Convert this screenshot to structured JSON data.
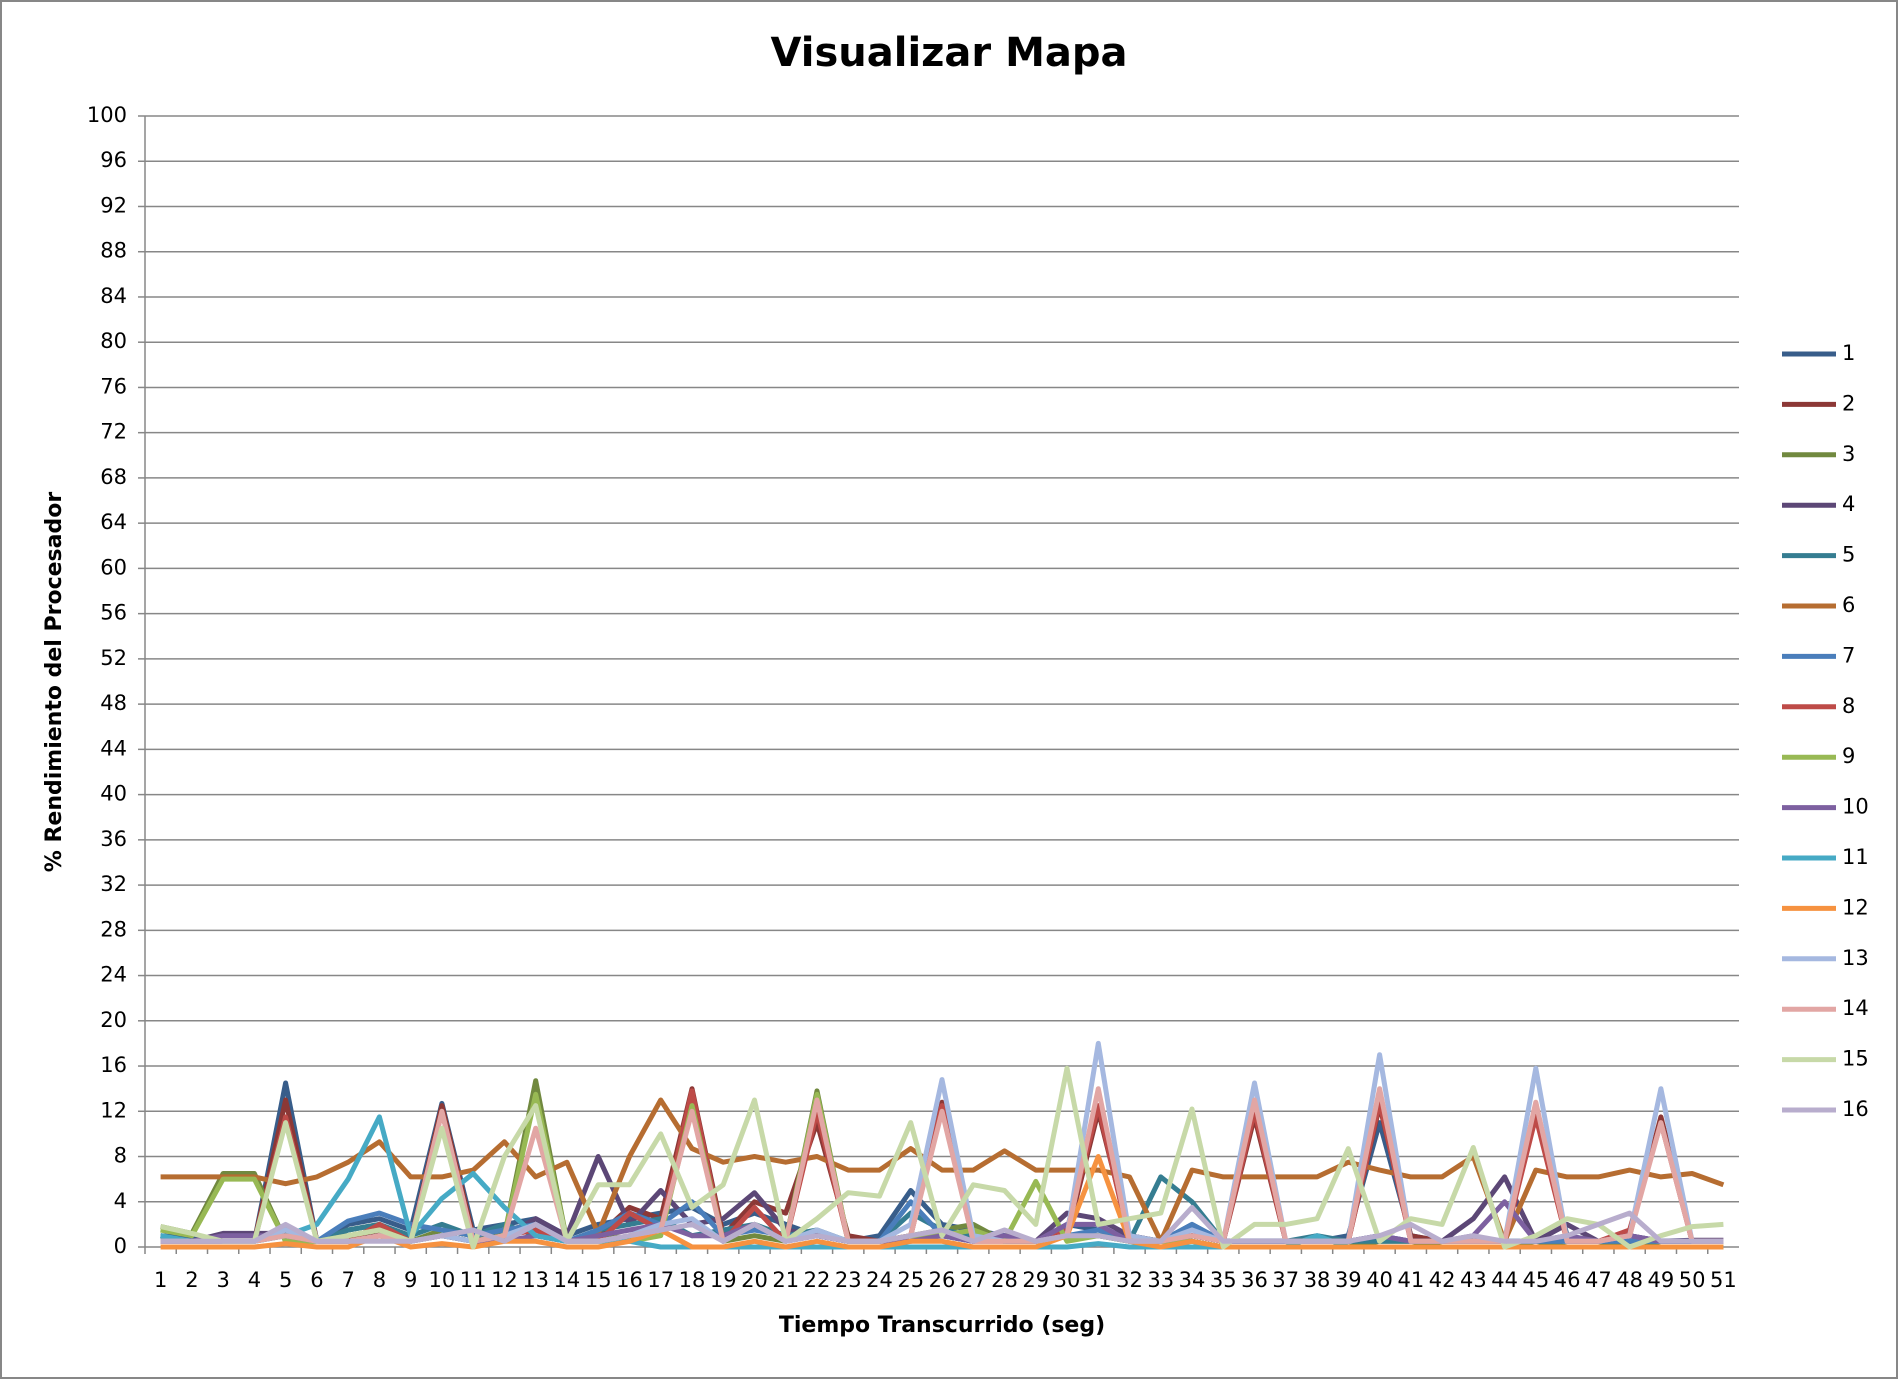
{
  "chart_data": {
    "type": "line",
    "title": "Visualizar Mapa",
    "x_label": "Tiempo Transcurrido (seg)",
    "y_label": "% Rendimiento del Procesador",
    "categories": [
      "1",
      "2",
      "3",
      "4",
      "5",
      "6",
      "7",
      "8",
      "9",
      "10",
      "11",
      "12",
      "13",
      "14",
      "15",
      "16",
      "17",
      "18",
      "19",
      "20",
      "21",
      "22",
      "23",
      "24",
      "25",
      "26",
      "27",
      "28",
      "29",
      "30",
      "31",
      "32",
      "33",
      "34",
      "35",
      "36",
      "37",
      "38",
      "39",
      "40",
      "41",
      "42",
      "43",
      "44",
      "45",
      "46",
      "47",
      "48",
      "49",
      "50",
      "51"
    ],
    "ylim": [
      0,
      100
    ],
    "yticks": [
      0,
      4,
      8,
      12,
      16,
      20,
      24,
      28,
      32,
      36,
      40,
      44,
      48,
      52,
      56,
      60,
      64,
      68,
      72,
      76,
      80,
      84,
      88,
      92,
      96,
      100
    ],
    "grid": true,
    "legend": "right",
    "series": [
      {
        "name": "1",
        "color": "#385d8a",
        "values": [
          1,
          0.8,
          0.5,
          0.5,
          14.5,
          0.5,
          2,
          2.5,
          1.5,
          12.7,
          1.5,
          2,
          2.5,
          1,
          2,
          2.5,
          3,
          3.5,
          2,
          3,
          2,
          1,
          0.5,
          1,
          5,
          2,
          1.5,
          1,
          0.5,
          2,
          1.5,
          1,
          0.5,
          2,
          0.5,
          0.5,
          0.5,
          0.5,
          1,
          11,
          1,
          0.5,
          0.5,
          0.5,
          12,
          1,
          0.5,
          1,
          0.5,
          0.5,
          0.5
        ]
      },
      {
        "name": "2",
        "color": "#8c3836",
        "values": [
          0.5,
          0.5,
          0.5,
          0.5,
          13,
          0.5,
          0.5,
          1.5,
          0.5,
          12.5,
          1,
          1.5,
          2,
          0.5,
          1,
          3.5,
          2.5,
          14,
          1,
          4,
          3,
          11,
          1,
          0.5,
          1,
          12.8,
          1,
          0.5,
          0.5,
          1,
          12,
          1,
          0.5,
          1,
          0.5,
          11.5,
          0.5,
          0.5,
          0.5,
          12.5,
          1,
          0.5,
          0.5,
          0.5,
          12,
          0.5,
          0.5,
          1,
          11.5,
          0.5,
          0.5
        ]
      },
      {
        "name": "3",
        "color": "#71893f",
        "values": [
          1.8,
          1.2,
          6.5,
          6.5,
          0.5,
          0.5,
          1.5,
          2,
          0.5,
          1.5,
          1,
          1,
          14.7,
          0.5,
          1,
          0.8,
          1.5,
          13.5,
          0.5,
          1,
          0.5,
          13.8,
          0.5,
          0.5,
          1,
          1.5,
          2,
          0.5,
          0.5,
          1,
          1,
          0.5,
          0.5,
          0.5,
          0,
          0,
          0,
          0,
          0,
          0.5,
          0.5,
          0,
          0,
          0,
          0.5,
          0,
          0,
          0.5,
          0,
          0,
          0
        ]
      },
      {
        "name": "4",
        "color": "#5c4776",
        "values": [
          0.5,
          0.5,
          1.2,
          1.2,
          1.2,
          0.5,
          0.5,
          1,
          0.5,
          1,
          0.5,
          1,
          2.5,
          1,
          8,
          2,
          5,
          2,
          2.5,
          4.8,
          1.5,
          1,
          0.5,
          0.5,
          1,
          1,
          0.5,
          1,
          0.5,
          3,
          2.5,
          1,
          0.5,
          1,
          0.5,
          0.5,
          0.5,
          0.5,
          0.5,
          1,
          0.5,
          0.5,
          2.5,
          6.2,
          0.5,
          2,
          0.5,
          1,
          0.5,
          0.6,
          0.6
        ]
      },
      {
        "name": "5",
        "color": "#357d91",
        "values": [
          1,
          0.5,
          0.5,
          0.5,
          1.5,
          0.5,
          1.5,
          2,
          1,
          2,
          1,
          2,
          1,
          0.5,
          1.5,
          2,
          2.5,
          1,
          1.5,
          2,
          1,
          1.5,
          0.5,
          0.5,
          3,
          1.5,
          1,
          0.5,
          0.5,
          1,
          1,
          0.5,
          6.2,
          4,
          0.5,
          0.5,
          0.5,
          1,
          0.5,
          0.5,
          0.5,
          0.5,
          0.5,
          0.5,
          0.5,
          0.5,
          0.5,
          0.5,
          0.5,
          0.5,
          0.5
        ]
      },
      {
        "name": "6",
        "color": "#b66d31",
        "values": [
          6.2,
          6.2,
          6.2,
          6.2,
          5.6,
          6.2,
          7.5,
          9.3,
          6.2,
          6.2,
          6.8,
          9.3,
          6.2,
          7.5,
          1.2,
          8,
          13,
          8.7,
          7.5,
          8,
          7.5,
          8,
          6.8,
          6.8,
          8.7,
          6.8,
          6.8,
          8.5,
          6.8,
          6.8,
          6.8,
          6.2,
          0.5,
          6.8,
          6.2,
          6.2,
          6.2,
          6.2,
          7.5,
          6.8,
          6.2,
          6.2,
          8,
          0.5,
          6.8,
          6.2,
          6.2,
          6.8,
          6.2,
          6.5,
          5.5
        ]
      },
      {
        "name": "7",
        "color": "#4a7ebb",
        "values": [
          0.5,
          0.5,
          0.5,
          0.5,
          1,
          0.5,
          2.3,
          3,
          2,
          1.5,
          1,
          1.5,
          2,
          0.5,
          1.5,
          3,
          2,
          4,
          1,
          1.5,
          1,
          1,
          0.5,
          0.5,
          4,
          1,
          0.5,
          1,
          0.5,
          1,
          1.5,
          0.5,
          0.5,
          2,
          0.5,
          0.5,
          0.5,
          0.5,
          0.5,
          1,
          0.5,
          0.5,
          0.5,
          0.5,
          0.5,
          0.5,
          0.5,
          0.5,
          0.5,
          0.5,
          0.5
        ]
      },
      {
        "name": "8",
        "color": "#be4b48",
        "values": [
          0.5,
          0.5,
          0.5,
          0.5,
          11.5,
          0.5,
          0.5,
          2,
          0.5,
          12,
          0.5,
          1,
          1.5,
          0.5,
          0.5,
          3,
          1.5,
          13.8,
          0.5,
          3.5,
          0.5,
          12,
          0.5,
          0.5,
          1,
          12.5,
          0.5,
          0.5,
          0.5,
          1.5,
          12.5,
          0.5,
          0.5,
          1,
          0.5,
          12,
          0.5,
          0.5,
          0.5,
          12.8,
          0.5,
          0.5,
          0.5,
          0.5,
          11.5,
          0.5,
          0.5,
          1.5,
          11,
          0.5,
          0.5
        ]
      },
      {
        "name": "9",
        "color": "#98b954",
        "values": [
          1.5,
          1,
          6,
          6,
          0.5,
          0.5,
          1,
          1.5,
          0.5,
          1,
          0.5,
          1,
          13.5,
          0.5,
          0.5,
          0.5,
          1,
          12.5,
          0.5,
          2,
          0.5,
          13.5,
          0.5,
          0.5,
          1,
          1,
          1.5,
          0.5,
          5.8,
          0.5,
          1,
          0.5,
          0.5,
          0.5,
          0,
          0,
          0,
          0,
          0,
          0,
          0,
          0,
          0,
          0,
          0,
          0,
          0,
          0,
          0,
          0,
          0
        ]
      },
      {
        "name": "10",
        "color": "#7d60a0",
        "values": [
          0.5,
          0.5,
          1,
          1,
          1,
          0.5,
          0.5,
          1,
          0.5,
          1,
          0.5,
          0.5,
          1,
          0.5,
          1,
          1.5,
          2,
          1,
          1,
          2,
          0.5,
          1,
          0.5,
          0.5,
          0.5,
          1,
          0.5,
          1,
          0.5,
          2,
          2,
          0.5,
          0.5,
          1,
          0.5,
          0.5,
          0.5,
          0.5,
          0.5,
          1,
          0.5,
          0.5,
          1,
          4,
          0.5,
          1,
          0.5,
          1,
          0.5,
          0.5,
          0.5
        ]
      },
      {
        "name": "11",
        "color": "#46aac5",
        "values": [
          1,
          0.5,
          0.5,
          0.5,
          1,
          2,
          6,
          11.5,
          1,
          4.3,
          6.5,
          3.5,
          1,
          0.5,
          0.5,
          0.5,
          0,
          0,
          0,
          0,
          0,
          0,
          0,
          0,
          0,
          0,
          0,
          0,
          0,
          0,
          0.3,
          0,
          0,
          0,
          0,
          0,
          0,
          1,
          0,
          0,
          0,
          0,
          0,
          0,
          0,
          0,
          0,
          0,
          0,
          0,
          0
        ]
      },
      {
        "name": "12",
        "color": "#f69240",
        "values": [
          0,
          0,
          0,
          0,
          0.3,
          0,
          0,
          1,
          0,
          0.3,
          0,
          0.5,
          0.5,
          0,
          0,
          0.5,
          1.5,
          0,
          0,
          0.5,
          0,
          0.5,
          0,
          0,
          0.5,
          0.5,
          0,
          0,
          0,
          1,
          8,
          0.5,
          0,
          0.5,
          0,
          0,
          0,
          0,
          0,
          0,
          0,
          0,
          0,
          0,
          0,
          0,
          0,
          0,
          0,
          0,
          0
        ]
      },
      {
        "name": "13",
        "color": "#a5b8e0",
        "values": [
          0.5,
          0.5,
          0.5,
          0.5,
          1.5,
          0.5,
          0.5,
          1,
          0.5,
          1,
          0.5,
          1,
          2,
          0.5,
          0.5,
          1,
          2,
          2.5,
          0.5,
          2,
          0.5,
          1.5,
          0.5,
          0.5,
          2,
          14.8,
          1,
          0.5,
          0.5,
          1,
          18,
          1,
          0.5,
          1.5,
          0.5,
          14.5,
          0.5,
          0.5,
          0.5,
          17,
          0.5,
          0.5,
          0.5,
          0.5,
          15.8,
          0.5,
          0.5,
          1,
          14,
          0.5,
          0.5
        ]
      },
      {
        "name": "14",
        "color": "#e2a6a4",
        "values": [
          0.5,
          0.5,
          0.5,
          0.5,
          1,
          0.5,
          0.5,
          1,
          0.5,
          12,
          0.5,
          1,
          10.5,
          0.5,
          0.5,
          1,
          1.5,
          12,
          0.5,
          2,
          0.5,
          13,
          0.5,
          0.5,
          1,
          12,
          0.5,
          0.5,
          0.5,
          1,
          14,
          0.5,
          0.5,
          1,
          0.5,
          13,
          0.5,
          0.5,
          0.5,
          14,
          0.5,
          0.5,
          0.5,
          0.5,
          12.8,
          0.5,
          0.5,
          1,
          11,
          0.5,
          0.5
        ]
      },
      {
        "name": "15",
        "color": "#c7d9a8",
        "values": [
          1.8,
          1.2,
          0.5,
          0.5,
          11,
          0.5,
          1,
          1.5,
          0.5,
          10.5,
          0,
          8,
          12.5,
          0.5,
          5.5,
          5.5,
          10,
          3.5,
          5.5,
          13,
          0.5,
          2.5,
          4.8,
          4.5,
          11,
          1,
          5.5,
          5,
          2,
          15.8,
          2,
          2.5,
          3,
          12.2,
          0,
          2,
          2,
          2.5,
          8.7,
          0.5,
          2.5,
          2,
          8.8,
          0,
          1,
          2.5,
          2,
          0,
          1,
          1.8,
          2
        ]
      },
      {
        "name": "16",
        "color": "#b8adcd",
        "values": [
          0.5,
          0.5,
          0.5,
          0.5,
          2,
          0.5,
          0.5,
          0.5,
          0.5,
          1,
          1.5,
          0.5,
          2,
          0.5,
          0.5,
          1,
          1.5,
          2,
          0.5,
          2,
          0.5,
          1,
          0.5,
          0.5,
          1,
          1.5,
          0.5,
          1.5,
          0.5,
          1,
          1,
          0.5,
          0.5,
          3.5,
          0.5,
          0.5,
          0.5,
          0.5,
          0.5,
          1,
          2,
          0.5,
          1,
          0.5,
          0.5,
          1,
          2,
          3,
          0.5,
          0.5,
          0.5
        ]
      }
    ]
  }
}
